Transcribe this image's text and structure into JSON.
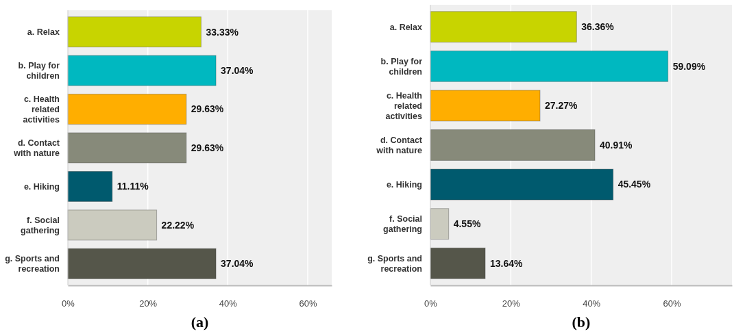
{
  "chart_data": [
    {
      "type": "bar",
      "orientation": "horizontal",
      "title": "(a)",
      "categories": [
        "a. Relax",
        "b. Play for children",
        "c. Health related activities",
        "d. Contact with nature",
        "e. Hiking",
        "f. Social gathering",
        "g. Sports and recreation"
      ],
      "values": [
        33.33,
        37.04,
        29.63,
        29.63,
        11.11,
        22.22,
        37.04
      ],
      "value_labels": [
        "33.33%",
        "37.04%",
        "29.63%",
        "29.63%",
        "11.11%",
        "22.22%",
        "37.04%"
      ],
      "colors": [
        "#c8d400",
        "#00b8c0",
        "#ffae00",
        "#878a7a",
        "#005a6e",
        "#cbcbbf",
        "#55564a"
      ],
      "xlim": [
        0,
        66
      ],
      "xticks": [
        {
          "value": 0,
          "label": "0%"
        },
        {
          "value": 20,
          "label": "20%"
        },
        {
          "value": 40,
          "label": "40%"
        },
        {
          "value": 60,
          "label": "60%"
        }
      ],
      "grid": "x"
    },
    {
      "type": "bar",
      "orientation": "horizontal",
      "title": "(b)",
      "categories": [
        "a. Relax",
        "b. Play for children",
        "c. Health related activities",
        "d. Contact with nature",
        "e. Hiking",
        "f. Social gathering",
        "g. Sports and recreation"
      ],
      "values": [
        36.36,
        59.09,
        27.27,
        40.91,
        45.45,
        4.55,
        13.64
      ],
      "value_labels": [
        "36.36%",
        "59.09%",
        "27.27%",
        "40.91%",
        "45.45%",
        "4.55%",
        "13.64%"
      ],
      "colors": [
        "#c8d400",
        "#00b8c0",
        "#ffae00",
        "#878a7a",
        "#005a6e",
        "#cbcbbf",
        "#55564a"
      ],
      "xlim": [
        0,
        75
      ],
      "xticks": [
        {
          "value": 0,
          "label": "0%"
        },
        {
          "value": 20,
          "label": "20%"
        },
        {
          "value": 40,
          "label": "40%"
        },
        {
          "value": 60,
          "label": "60%"
        }
      ],
      "grid": "x"
    }
  ]
}
